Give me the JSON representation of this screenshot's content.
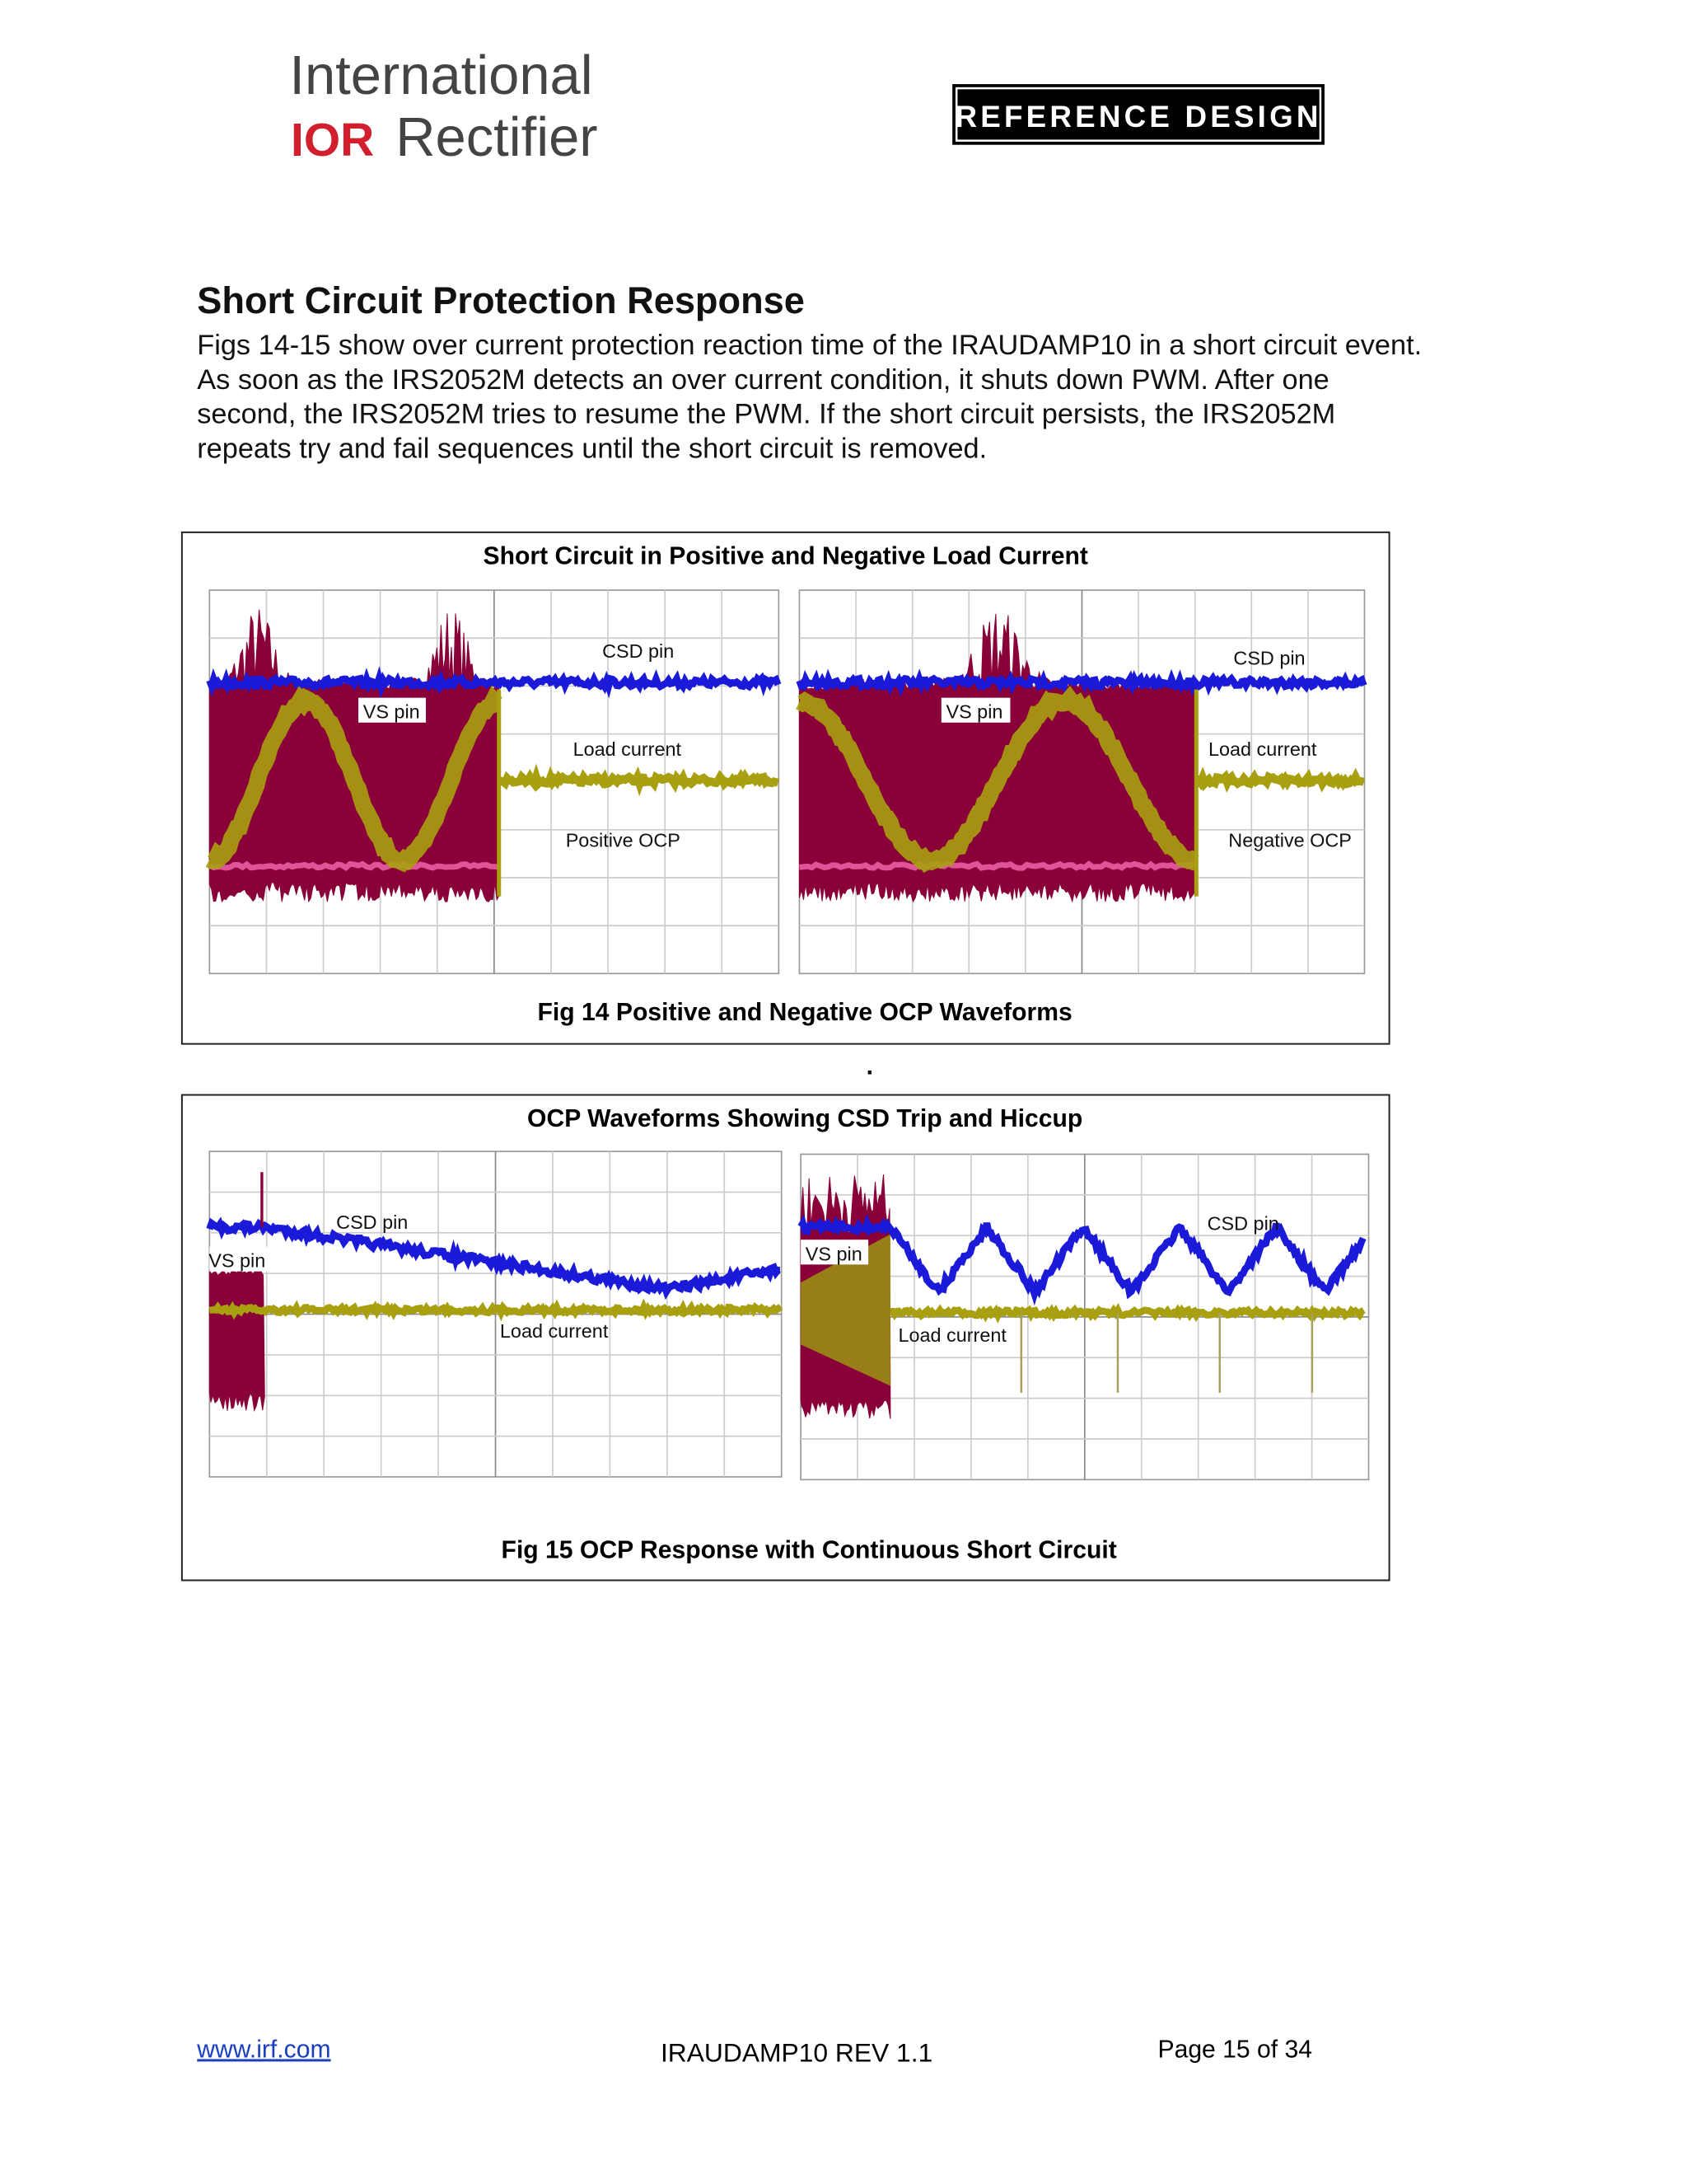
{
  "header": {
    "logo_top": "International",
    "logo_mark": "IOR",
    "logo_bottom": "Rectifier",
    "badge": "REFERENCE DESIGN"
  },
  "section": {
    "title": "Short Circuit Protection Response",
    "paragraph": [
      "Figs 14-15 show over current protection reaction time of the IRAUDAMP10 in a short circuit event.",
      "As soon as the IRS2052M detects an over current condition, it shuts down PWM. After one",
      "second, the IRS2052M tries to resume the PWM. If the short circuit persists, the IRS2052M",
      "repeats try and fail sequences until the short circuit is removed."
    ]
  },
  "figures": [
    {
      "title": "Short Circuit in Positive and Negative Load Current",
      "panels": [
        {
          "labels": [
            "CSD pin",
            "VS pin",
            "Load current",
            "Positive OCP"
          ]
        },
        {
          "labels": [
            "CSD pin",
            "VS pin",
            "Load current",
            "Negative OCP"
          ]
        }
      ],
      "caption": "Fig 14 Positive and Negative OCP Waveforms"
    },
    {
      "title": "OCP Waveforms Showing CSD Trip and Hiccup",
      "panels": [
        {
          "labels": [
            "CSD pin",
            "VS pin",
            "Load current"
          ]
        },
        {
          "labels": [
            "VS pin",
            "CSD pin",
            "Load current"
          ]
        }
      ],
      "caption": "Fig 15 OCP Response with Continuous Short Circuit"
    }
  ],
  "separator": ".",
  "footer": {
    "link": "www.irf.com",
    "doc": "IRAUDAMP10 REV 1.1",
    "page": "Page 15 of 34"
  }
}
